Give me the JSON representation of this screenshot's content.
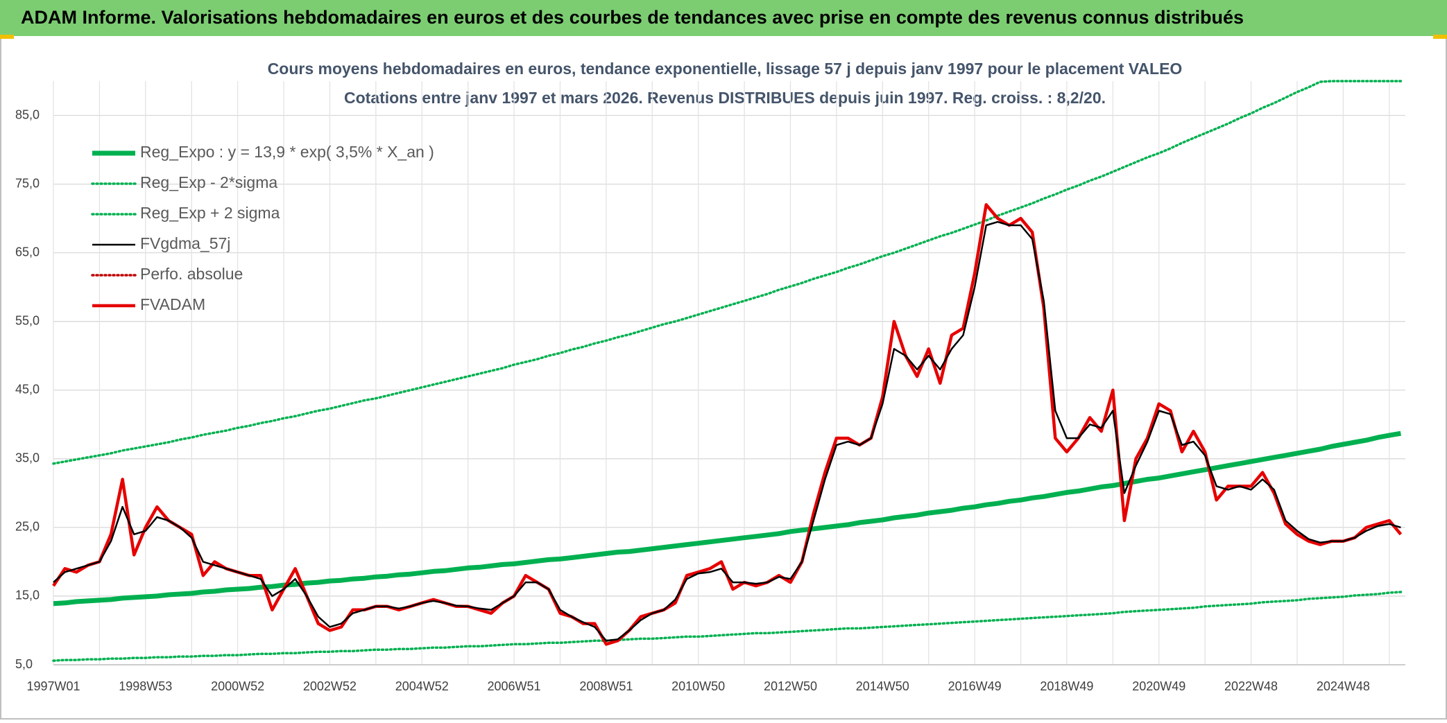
{
  "header": {
    "title": "ADAM Informe. Valorisations hebdomadaires en euros et des courbes de tendances avec prise en compte des revenus connus distribués"
  },
  "chart_data": {
    "type": "line",
    "title": "Cours moyens hebdomadaires en euros, tendance exponentielle, lissage 57 j depuis janv 1997 pour le placement VALEO",
    "subtitle": "Cotations entre janv 1997 et mars 2026. Revenus DISTRIBUES depuis juin 1997. Reg. croiss. : 8,2/20.",
    "categories": [
      "1997W01",
      null,
      null,
      null,
      null,
      null,
      null,
      null,
      "1998W53",
      null,
      null,
      null,
      null,
      null,
      null,
      null,
      "2000W52",
      null,
      null,
      null,
      null,
      null,
      null,
      null,
      "2002W52",
      null,
      null,
      null,
      null,
      null,
      null,
      null,
      "2004W52",
      null,
      null,
      null,
      null,
      null,
      null,
      null,
      "2006W51",
      null,
      null,
      null,
      null,
      null,
      null,
      null,
      "2008W51",
      null,
      null,
      null,
      null,
      null,
      null,
      null,
      "2010W50",
      null,
      null,
      null,
      null,
      null,
      null,
      null,
      "2012W50",
      null,
      null,
      null,
      null,
      null,
      null,
      null,
      "2014W50",
      null,
      null,
      null,
      null,
      null,
      null,
      null,
      "2016W49",
      null,
      null,
      null,
      null,
      null,
      null,
      null,
      "2018W49",
      null,
      null,
      null,
      null,
      null,
      null,
      null,
      "2020W49",
      null,
      null,
      null,
      null,
      null,
      null,
      null,
      "2022W48",
      null,
      null,
      null,
      null,
      null,
      null,
      null,
      "2024W48",
      null,
      null,
      null,
      null,
      null
    ],
    "ylim": [
      5,
      90
    ],
    "yticks": [
      {
        "value": 5,
        "label": "5,0"
      },
      {
        "value": 15,
        "label": "15,0"
      },
      {
        "value": 25,
        "label": "25,0"
      },
      {
        "value": 35,
        "label": "35,0"
      },
      {
        "value": 45,
        "label": "45,0"
      },
      {
        "value": 55,
        "label": "55,0"
      },
      {
        "value": 65,
        "label": "65,0"
      },
      {
        "value": 75,
        "label": "75,0"
      },
      {
        "value": 85,
        "label": "85,0"
      }
    ],
    "grid": true,
    "legend": "top-left",
    "series": [
      {
        "name": "Reg_Expo : y = 13,9 * exp( 3,5% *  X_an )",
        "color": "#00b050",
        "style": "thick",
        "values": [
          13.9,
          14.0,
          14.2,
          14.3,
          14.4,
          14.5,
          14.7,
          14.8,
          14.9,
          15.0,
          15.2,
          15.3,
          15.4,
          15.6,
          15.7,
          15.9,
          16.0,
          16.1,
          16.3,
          16.4,
          16.6,
          16.7,
          16.9,
          17.0,
          17.2,
          17.3,
          17.5,
          17.6,
          17.8,
          17.9,
          18.1,
          18.2,
          18.4,
          18.6,
          18.7,
          18.9,
          19.1,
          19.2,
          19.4,
          19.6,
          19.7,
          19.9,
          20.1,
          20.3,
          20.4,
          20.6,
          20.8,
          21.0,
          21.2,
          21.4,
          21.5,
          21.7,
          21.9,
          22.1,
          22.3,
          22.5,
          22.7,
          22.9,
          23.1,
          23.3,
          23.5,
          23.7,
          23.9,
          24.1,
          24.4,
          24.6,
          24.8,
          25.0,
          25.2,
          25.4,
          25.7,
          25.9,
          26.1,
          26.4,
          26.6,
          26.8,
          27.1,
          27.3,
          27.5,
          27.8,
          28.0,
          28.3,
          28.5,
          28.8,
          29.0,
          29.3,
          29.5,
          29.8,
          30.1,
          30.3,
          30.6,
          30.9,
          31.1,
          31.4,
          31.7,
          32.0,
          32.2,
          32.5,
          32.8,
          33.1,
          33.4,
          33.7,
          34.0,
          34.3,
          34.6,
          34.9,
          35.2,
          35.5,
          35.8,
          36.1,
          36.4,
          36.8,
          37.1,
          37.4,
          37.7,
          38.1,
          38.4,
          38.7
        ]
      },
      {
        "name": "Reg_Exp - 2*sigma",
        "color": "#00b050",
        "style": "dotted",
        "values": [
          5.6,
          5.7,
          5.7,
          5.8,
          5.8,
          5.9,
          5.9,
          6.0,
          6.0,
          6.1,
          6.1,
          6.2,
          6.2,
          6.3,
          6.3,
          6.4,
          6.4,
          6.5,
          6.6,
          6.6,
          6.7,
          6.7,
          6.8,
          6.9,
          6.9,
          7.0,
          7.0,
          7.1,
          7.2,
          7.2,
          7.3,
          7.3,
          7.4,
          7.5,
          7.5,
          7.6,
          7.7,
          7.7,
          7.8,
          7.9,
          8.0,
          8.0,
          8.1,
          8.2,
          8.2,
          8.3,
          8.4,
          8.5,
          8.5,
          8.6,
          8.7,
          8.8,
          8.8,
          8.9,
          9.0,
          9.1,
          9.1,
          9.2,
          9.3,
          9.4,
          9.5,
          9.6,
          9.6,
          9.7,
          9.8,
          9.9,
          10.0,
          10.1,
          10.2,
          10.3,
          10.3,
          10.4,
          10.5,
          10.6,
          10.7,
          10.8,
          10.9,
          11.0,
          11.1,
          11.2,
          11.3,
          11.4,
          11.5,
          11.6,
          11.7,
          11.8,
          11.9,
          12.0,
          12.1,
          12.2,
          12.3,
          12.4,
          12.5,
          12.7,
          12.8,
          12.9,
          13.0,
          13.1,
          13.2,
          13.3,
          13.5,
          13.6,
          13.7,
          13.8,
          13.9,
          14.1,
          14.2,
          14.3,
          14.4,
          14.6,
          14.7,
          14.8,
          14.9,
          15.1,
          15.2,
          15.3,
          15.5,
          15.6
        ]
      },
      {
        "name": "Reg_Exp + 2 sigma",
        "color": "#00b050",
        "style": "dotted",
        "values": [
          34.3,
          34.6,
          34.9,
          35.2,
          35.5,
          35.8,
          36.2,
          36.5,
          36.8,
          37.1,
          37.4,
          37.8,
          38.1,
          38.5,
          38.8,
          39.1,
          39.5,
          39.8,
          40.2,
          40.5,
          40.9,
          41.2,
          41.6,
          42.0,
          42.3,
          42.7,
          43.1,
          43.5,
          43.8,
          44.2,
          44.6,
          45.0,
          45.4,
          45.8,
          46.2,
          46.6,
          47.0,
          47.4,
          47.8,
          48.2,
          48.7,
          49.1,
          49.5,
          50.0,
          50.4,
          50.9,
          51.3,
          51.8,
          52.2,
          52.7,
          53.1,
          53.6,
          54.1,
          54.6,
          55.0,
          55.5,
          56.0,
          56.5,
          57.0,
          57.5,
          58.0,
          58.5,
          59.0,
          59.6,
          60.1,
          60.6,
          61.2,
          61.7,
          62.2,
          62.8,
          63.3,
          63.9,
          64.5,
          65.0,
          65.6,
          66.2,
          66.8,
          67.4,
          67.9,
          68.5,
          69.1,
          69.7,
          70.4,
          71.0,
          71.6,
          72.2,
          72.9,
          73.5,
          74.2,
          74.8,
          75.5,
          76.1,
          76.8,
          77.5,
          78.2,
          78.9,
          79.5,
          80.2,
          81.0,
          81.7,
          82.4,
          83.1,
          83.8,
          84.6,
          85.3,
          86.1,
          86.8,
          87.6,
          88.4,
          89.1,
          89.9,
          90,
          90,
          90,
          90,
          90,
          90,
          90
        ]
      },
      {
        "name": "FVgdma_57j",
        "color": "#000000",
        "style": "solid",
        "front": true,
        "values": [
          17,
          18.5,
          19,
          19.5,
          20,
          23,
          28,
          24,
          24.5,
          26.5,
          26,
          25,
          23.5,
          20,
          19.5,
          19,
          18.5,
          18,
          17.5,
          15,
          16,
          17.5,
          15,
          12,
          10.5,
          11,
          12.5,
          13,
          13.5,
          13.5,
          13.2,
          13.5,
          14,
          14.3,
          14,
          13.6,
          13.5,
          13.2,
          13,
          14,
          15,
          17,
          17,
          16,
          13,
          12,
          11.2,
          10.5,
          8.5,
          8.7,
          10,
          11.5,
          12.5,
          13,
          14.5,
          17.5,
          18.3,
          18.5,
          19,
          17,
          17,
          16.8,
          17,
          17.8,
          17.5,
          20,
          26,
          32,
          37,
          37.5,
          37,
          38,
          43,
          51,
          50,
          48,
          50,
          48,
          51,
          53,
          60,
          69,
          69.5,
          69,
          69,
          67,
          58,
          42,
          38,
          38,
          40,
          39.5,
          42,
          30,
          34,
          37.5,
          42,
          41.5,
          37,
          37.5,
          35.5,
          31,
          30.5,
          31,
          30.5,
          32,
          30.5,
          26,
          24.5,
          23.3,
          22.8,
          23,
          23,
          23.5,
          24.5,
          25.2,
          25.5,
          25
        ]
      },
      {
        "name": "Perfo. absolue",
        "color": "#c00000",
        "style": "dotted",
        "values": [
          null,
          null,
          null,
          null,
          null,
          null,
          null,
          null,
          null,
          null,
          null,
          null,
          null,
          null,
          null,
          null,
          null,
          null,
          null,
          null,
          null,
          null,
          null,
          null,
          null,
          null,
          null,
          null,
          null,
          null,
          null,
          null,
          null,
          null,
          null,
          null,
          null,
          null,
          null,
          null,
          null,
          null,
          null,
          null,
          null,
          null,
          null,
          null,
          null,
          null,
          null,
          null,
          null,
          null,
          null,
          null,
          null,
          null,
          null,
          null,
          null,
          null,
          null,
          null,
          null,
          null,
          null,
          null,
          null,
          null,
          null,
          null,
          null,
          null,
          null,
          null,
          null,
          null,
          null,
          null,
          null,
          null,
          null,
          null,
          null,
          null,
          null,
          null,
          null,
          null,
          null,
          null,
          null,
          null,
          null,
          null,
          null,
          null,
          null,
          null,
          null,
          null,
          null,
          null,
          null,
          null,
          null,
          null,
          null,
          null,
          null,
          null,
          null,
          null,
          null,
          null,
          null,
          null
        ]
      },
      {
        "name": "FVADAM",
        "color": "#e60000",
        "style": "bold",
        "values": [
          16.5,
          19,
          18.5,
          19.5,
          20,
          24,
          32,
          21,
          25,
          28,
          26,
          25,
          24,
          18,
          20,
          19,
          18.5,
          18,
          18,
          13,
          16,
          19,
          15,
          11,
          10,
          10.5,
          13,
          13,
          13.5,
          13.5,
          13,
          13.5,
          14,
          14.5,
          14,
          13.5,
          13.5,
          13,
          12.5,
          14,
          15,
          18,
          17,
          16,
          12.5,
          12,
          11,
          11,
          8,
          8.5,
          10,
          12,
          12.5,
          13,
          14,
          18,
          18.5,
          19,
          20,
          16,
          17,
          16.5,
          17,
          18,
          17,
          20,
          27,
          33,
          38,
          38,
          37,
          38,
          44,
          55,
          50,
          47,
          51,
          46,
          53,
          54,
          62,
          72,
          70,
          69,
          70,
          68,
          57,
          38,
          36,
          38,
          41,
          39,
          45,
          26,
          35,
          38,
          43,
          42,
          36,
          39,
          36,
          29,
          31,
          31,
          31,
          33,
          30,
          25.5,
          24,
          23,
          22.5,
          23,
          23,
          23.5,
          25,
          25.5,
          26,
          24
        ]
      }
    ]
  }
}
